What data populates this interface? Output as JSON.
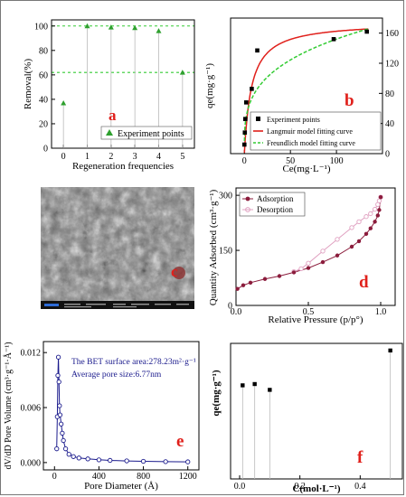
{
  "colors": {
    "accent_label": "#e0201b",
    "green": "#2ea02e",
    "dash_green": "#33cc33",
    "blue_text": "#1a1a8c",
    "adsorb": "#8b1c3c",
    "desorb": "#e0a0c0"
  },
  "chart_data": [
    {
      "panel": "a",
      "type": "scatter",
      "x": [
        0,
        1,
        2,
        3,
        4,
        5
      ],
      "values": [
        37,
        100,
        99,
        98.5,
        96,
        62
      ],
      "xlabel": "Regeneration frequencies",
      "ylabel": "Removal(%)",
      "xlim": [
        -0.5,
        5.5
      ],
      "ylim": [
        0,
        105
      ],
      "xticks": [
        "0",
        "1",
        "2",
        "3",
        "4",
        "5"
      ],
      "yticks": [
        "0",
        "20",
        "40",
        "60",
        "80",
        "100"
      ],
      "reference_lines": [
        100,
        62
      ],
      "legend": [
        "Experiment points"
      ],
      "panel_label": "a"
    },
    {
      "panel": "b",
      "type": "scatter",
      "points_x": [
        0,
        0.5,
        1,
        2,
        8,
        14,
        97,
        133
      ],
      "points_y": [
        12,
        28,
        46,
        68,
        86,
        137,
        152,
        162
      ],
      "series": [
        {
          "name": "Experiment points"
        },
        {
          "name": "Langmuir model fitting curve"
        },
        {
          "name": "Freundlich model fitting curve"
        }
      ],
      "xlabel": "Ce(mg·L⁻¹)",
      "ylabel": "qe(mg·g⁻¹)",
      "xlim": [
        -15,
        150
      ],
      "ylim": [
        0,
        180
      ],
      "xticks": [
        "0",
        "50",
        "100"
      ],
      "yticks": [
        "0",
        "40",
        "80",
        "120",
        "160"
      ],
      "panel_label": "b"
    },
    {
      "panel": "d",
      "type": "line",
      "xlabel": "Relative Pressure (p/p°)",
      "ylabel": "Quantity Adsorbed (cm³·g⁻¹)",
      "xlim": [
        0,
        1.1
      ],
      "ylim": [
        0,
        320
      ],
      "xticks": [
        "0.0",
        "0.5",
        "1.0"
      ],
      "yticks": [
        "0",
        "150",
        "300"
      ],
      "adsorption_x": [
        0.01,
        0.05,
        0.1,
        0.2,
        0.3,
        0.4,
        0.5,
        0.6,
        0.7,
        0.8,
        0.85,
        0.9,
        0.93,
        0.96,
        0.98,
        0.99,
        1.0
      ],
      "adsorption_y": [
        45,
        55,
        62,
        72,
        80,
        90,
        102,
        118,
        136,
        160,
        175,
        195,
        210,
        228,
        245,
        260,
        295
      ],
      "desorption_x": [
        1.0,
        0.99,
        0.98,
        0.96,
        0.93,
        0.9,
        0.85,
        0.8,
        0.7,
        0.6,
        0.5,
        0.45,
        0.4
      ],
      "desorption_y": [
        295,
        285,
        275,
        262,
        250,
        242,
        228,
        212,
        180,
        148,
        115,
        100,
        92
      ],
      "series": [
        {
          "name": "Adsorption"
        },
        {
          "name": "Desorption"
        }
      ],
      "legend": "top-left",
      "panel_label": "d"
    },
    {
      "panel": "e",
      "type": "line",
      "x": [
        20,
        25,
        30,
        35,
        40,
        45,
        50,
        60,
        70,
        80,
        100,
        130,
        170,
        220,
        300,
        400,
        500,
        650,
        800,
        1000,
        1200
      ],
      "values": [
        0.0015,
        0.005,
        0.0095,
        0.0115,
        0.0088,
        0.0062,
        0.0052,
        0.0042,
        0.0032,
        0.0024,
        0.0015,
        0.0009,
        0.00065,
        0.0005,
        0.0004,
        0.0003,
        0.00024,
        0.00018,
        0.00014,
        0.0001,
        8e-05
      ],
      "xlabel": "Pore Diameter (Å)",
      "ylabel": "dV/dD Pore Volume (cm³·g⁻¹·Å⁻¹)",
      "xlim": [
        -100,
        1300
      ],
      "ylim": [
        -0.0008,
        0.0132
      ],
      "xticks": [
        "0",
        "400",
        "800",
        "1200"
      ],
      "yticks": [
        "0.000",
        "0.006",
        "0.012"
      ],
      "annotations": [
        "The BET surface area:278.23m²·g⁻¹",
        "Average pore size:6.77nm"
      ],
      "panel_label": "e"
    },
    {
      "panel": "f",
      "type": "scatter",
      "x": [
        0.01,
        0.05,
        0.1,
        0.5
      ],
      "values": [
        14.5,
        14.7,
        13.8,
        19.9
      ],
      "xlabel": "C(mol·L⁻¹)",
      "ylabel": "qe(mg·g⁻¹)",
      "xlim": [
        -0.03,
        0.54
      ],
      "ylim": [
        0,
        21
      ],
      "xticks": [
        "0.0",
        "0.2",
        "0.4"
      ],
      "panel_label": "f"
    }
  ],
  "panel_c": {
    "panel_label": "c"
  }
}
